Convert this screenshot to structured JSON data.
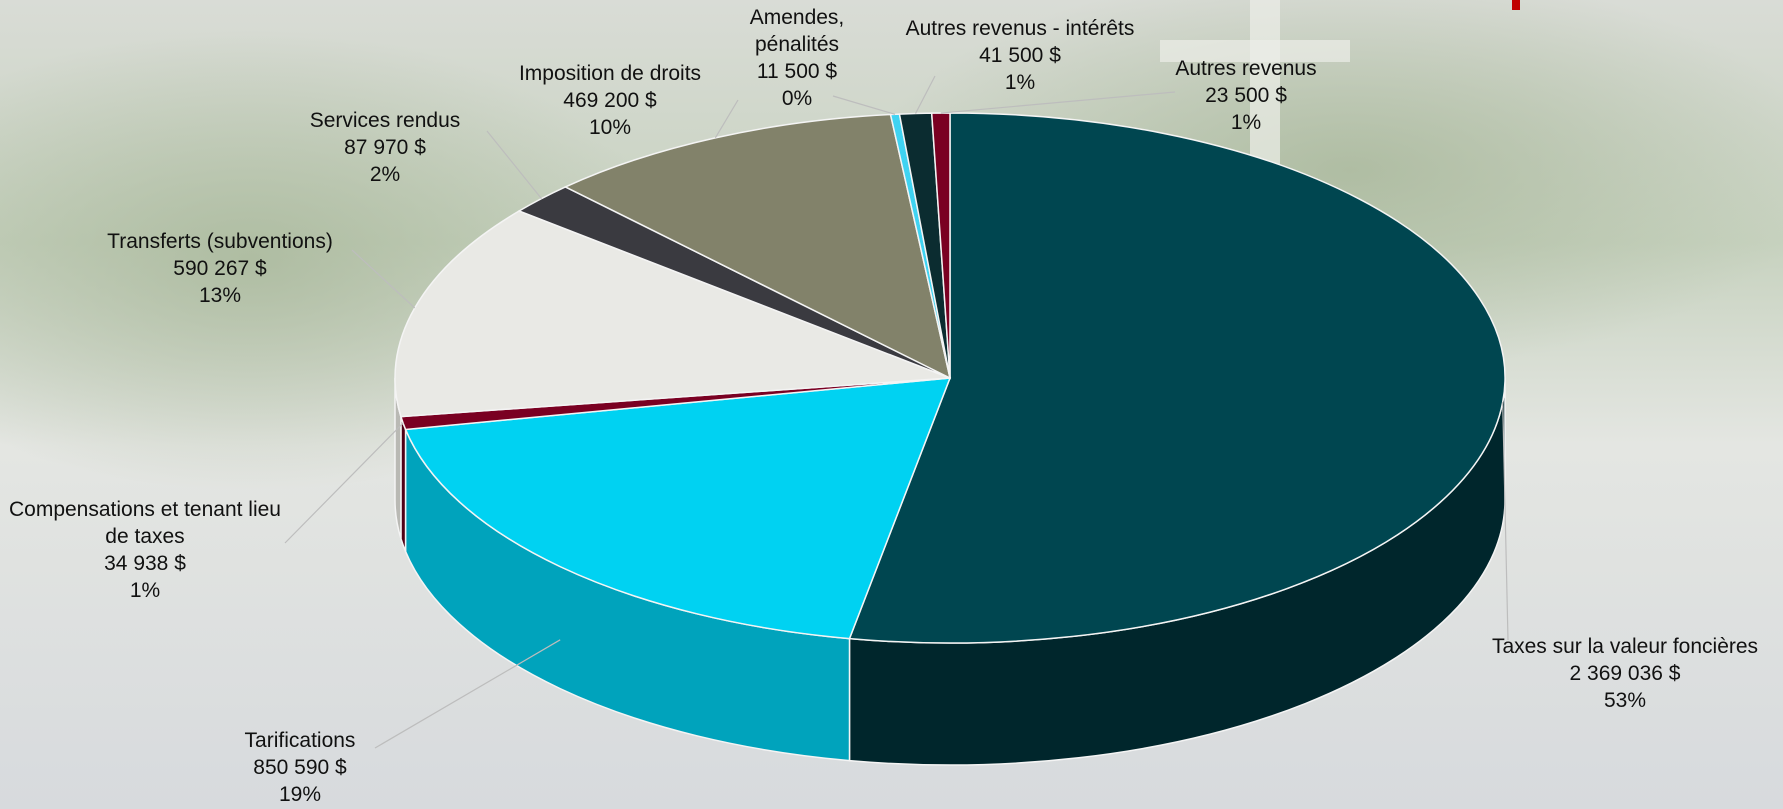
{
  "chart_data": {
    "type": "pie",
    "categories": [
      "Taxes sur la valeur foncières",
      "Tarifications",
      "Compensations et tenant lieu de taxes",
      "Transferts (subventions)",
      "Services rendus",
      "Imposition de droits",
      "Amendes, pénalités",
      "Autres revenus - intérêts",
      "Autres revenus"
    ],
    "values": [
      2369036,
      850590,
      34938,
      590267,
      87970,
      469200,
      11500,
      41500,
      23500
    ],
    "value_labels": [
      "2 369 036  $",
      "850 590  $",
      "34 938  $",
      "590 267  $",
      "87 970  $",
      "469 200  $",
      "11 500  $",
      "41 500  $",
      "23 500  $"
    ],
    "percent_labels": [
      "53%",
      "19%",
      "1%",
      "13%",
      "2%",
      "10%",
      "0%",
      "1%",
      "1%"
    ],
    "colors": [
      "#004650",
      "#00d2f2",
      "#7a0022",
      "#e9e9e5",
      "#3a3a40",
      "#82826a",
      "#3fd3f2",
      "#0b2c30",
      "#7a0022"
    ],
    "side_colors": [
      "#00262c",
      "#00a3bc",
      "#4f0016",
      "#b9b9b4",
      "#222226",
      "#5e5e4c",
      "#2aa8c2",
      "#061b1e",
      "#4f0016"
    ]
  }
}
